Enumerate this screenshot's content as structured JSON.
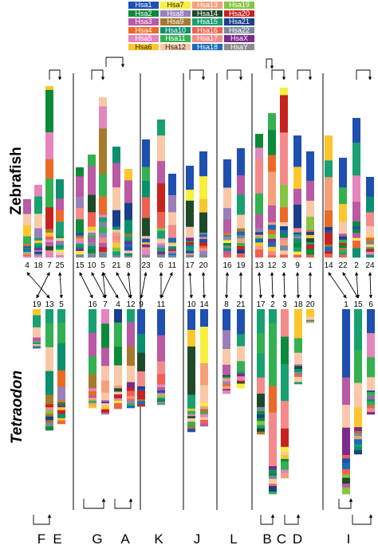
{
  "legend": [
    {
      "label": "Hsa1",
      "color": "#1f4fb0",
      "text": "#ffffff"
    },
    {
      "label": "Hsa7",
      "color": "#f7ef3c",
      "text": "#222222"
    },
    {
      "label": "Hsa13",
      "color": "#f4a07a",
      "text": "#ffffff"
    },
    {
      "label": "Hsa19",
      "color": "#86c441",
      "text": "#ffffff"
    },
    {
      "label": "Hsa2",
      "color": "#0c8a3a",
      "text": "#ffffff"
    },
    {
      "label": "Hsa8",
      "color": "#9b7fba",
      "text": "#ffffff"
    },
    {
      "label": "Hsa14",
      "color": "#1f4a2a",
      "text": "#ffffff"
    },
    {
      "label": "Hsa20",
      "color": "#c8221e",
      "text": "#ffffff"
    },
    {
      "label": "Hsa3",
      "color": "#b85aa4",
      "text": "#ffffff"
    },
    {
      "label": "Hsa9",
      "color": "#a57a2c",
      "text": "#ffffff"
    },
    {
      "label": "Hsa15",
      "color": "#18a070",
      "text": "#ffffff"
    },
    {
      "label": "Hsa21",
      "color": "#1a3f8a",
      "text": "#ffffff"
    },
    {
      "label": "Hsa4",
      "color": "#ec6a28",
      "text": "#ffffff"
    },
    {
      "label": "Hsa10",
      "color": "#0c8f6e",
      "text": "#ffffff"
    },
    {
      "label": "Hsa16",
      "color": "#f06050",
      "text": "#ffffff"
    },
    {
      "label": "Hsa22",
      "color": "#7a8a9c",
      "text": "#ffffff"
    },
    {
      "label": "Hsa5",
      "color": "#e585be",
      "text": "#ffffff"
    },
    {
      "label": "Hsa11",
      "color": "#33b050",
      "text": "#ffffff"
    },
    {
      "label": "Hsa17",
      "color": "#f48a8a",
      "text": "#ffffff"
    },
    {
      "label": "HsaX",
      "color": "#7a2a8c",
      "text": "#ffffff"
    },
    {
      "label": "Hsa6",
      "color": "#fbc72c",
      "text": "#222222"
    },
    {
      "label": "Hsa12",
      "color": "#f8c8a8",
      "text": "#222222"
    },
    {
      "label": "Hsa18",
      "color": "#1a6ab8",
      "text": "#ffffff"
    },
    {
      "label": "HsaY",
      "color": "#8c8c8c",
      "text": "#ffffff"
    }
  ],
  "species": {
    "top": "Zebrafish",
    "bottom": "Tetraodon"
  },
  "zebrafish_chromosomes": [
    "4",
    "18",
    "7",
    "25",
    "15",
    "10",
    "5",
    "21",
    "8",
    "23",
    "6",
    "11",
    "17",
    "20",
    "16",
    "19",
    "13",
    "12",
    "3",
    "9",
    "1",
    "14",
    "22",
    "2",
    "24"
  ],
  "tetraodon_chromosomes": [
    "19",
    "13",
    "5",
    "16",
    "7",
    "4",
    "12",
    "9",
    "11",
    "10",
    "14",
    "8",
    "21",
    "17",
    "2",
    "3",
    "18",
    "20",
    "1",
    "15",
    "6"
  ],
  "groups": [
    "F",
    "E",
    "G",
    "A",
    "K",
    "J",
    "L",
    "B",
    "C",
    "D",
    "I"
  ]
}
